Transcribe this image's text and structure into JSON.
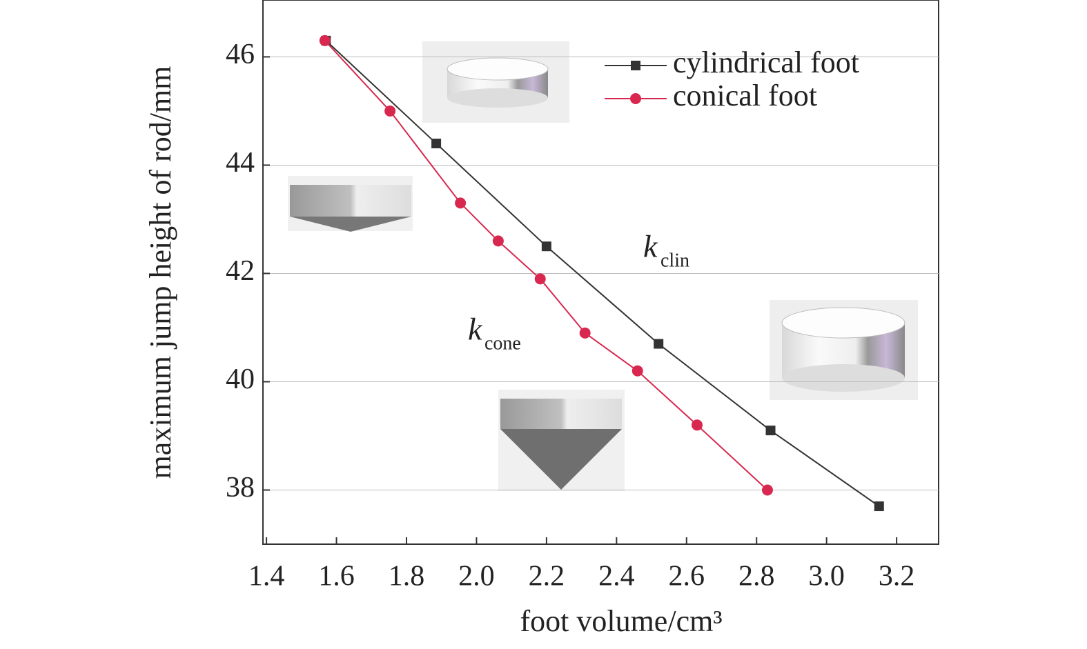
{
  "chart_data": {
    "type": "line",
    "x_label": "foot volume/cm³",
    "y_label": "maximum jump height of rod/mm",
    "xlim": [
      1.39,
      3.32
    ],
    "ylim": [
      37,
      47.05
    ],
    "xticks": [
      1.4,
      1.6,
      1.8,
      {
        "value": 2.0,
        "label": "2.0"
      },
      2.2,
      2.4,
      2.6,
      2.8,
      {
        "value": 3.0,
        "label": "3.0"
      },
      3.2
    ],
    "yticks": [
      38,
      40,
      42,
      44,
      46
    ],
    "grid": true,
    "legend": "upper right",
    "series": [
      {
        "name": "cylindrical foot",
        "color": "#333333",
        "marker": "square",
        "x": [
          1.57,
          1.885,
          2.2,
          2.52,
          2.84,
          3.15
        ],
        "values": [
          46.3,
          44.4,
          42.5,
          40.7,
          39.1,
          37.7
        ]
      },
      {
        "name": "conical foot",
        "color": "#d8284f",
        "marker": "circle",
        "x": [
          1.567,
          1.753,
          1.954,
          2.062,
          2.182,
          2.31,
          2.46,
          2.63,
          2.831
        ],
        "values": [
          46.3,
          45.0,
          43.3,
          42.6,
          41.9,
          40.9,
          40.2,
          39.2,
          38.0
        ]
      }
    ],
    "annotations": [
      {
        "text": "k",
        "sub": "clin"
      },
      {
        "text": "k",
        "sub": "cone"
      }
    ]
  }
}
